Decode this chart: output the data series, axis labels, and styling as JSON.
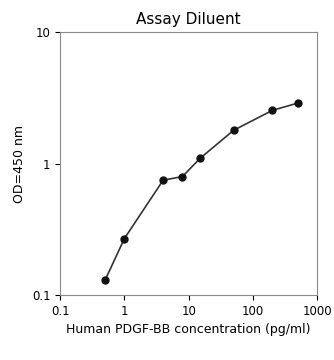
{
  "title": "Assay Diluent",
  "xlabel": "Human PDGF-BB concentration (pg/ml)",
  "ylabel": "OD=450 nm",
  "x_data": [
    0.5,
    1.0,
    4.0,
    8.0,
    15.0,
    50.0,
    200.0,
    500.0
  ],
  "y_data": [
    0.13,
    0.27,
    0.75,
    0.8,
    1.1,
    1.8,
    2.55,
    2.9
  ],
  "xlim": [
    0.1,
    1000
  ],
  "ylim": [
    0.1,
    10
  ],
  "line_color": "#333333",
  "marker_color": "#111111",
  "marker_size": 5,
  "title_fontsize": 11,
  "label_fontsize": 9,
  "tick_fontsize": 8.5,
  "background_color": "#ffffff"
}
